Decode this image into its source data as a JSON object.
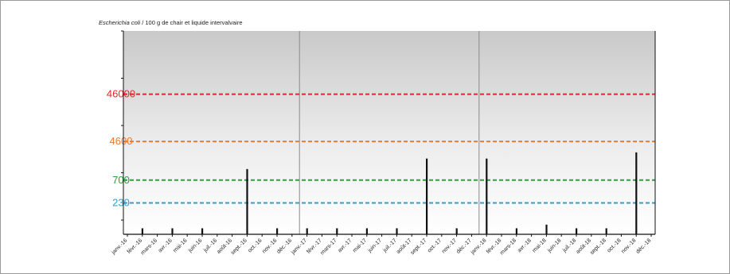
{
  "chart_data": {
    "type": "bar",
    "title_italic": "Escherichia coli",
    "title_rest": " / 100 g de chair et liquide intervalvaire",
    "categories": [
      "janv.-16",
      "févr.-16",
      "mars-16",
      "avr.-16",
      "mai-16",
      "juin-16",
      "juil.-16",
      "août-16",
      "sept.-16",
      "oct.-16",
      "nov.-16",
      "déc.-16",
      "janv.-17",
      "févr.-17",
      "mars-17",
      "avr.-17",
      "mai-17",
      "juin-17",
      "juil.-17",
      "août-17",
      "sept.-17",
      "oct.-17",
      "nov.-17",
      "déc.-17",
      "janv.-18",
      "févr.-18",
      "mars-18",
      "avr.-18",
      "mai-18",
      "juin-18",
      "juil.-18",
      "août-18",
      "sept.-18",
      "oct.-18",
      "nov.-18",
      "déc.-18"
    ],
    "bars": [
      {
        "category": "févr.-16",
        "value": 67
      },
      {
        "category": "avr.-16",
        "value": 67
      },
      {
        "category": "juin-16",
        "value": 67
      },
      {
        "category": "sept.-16",
        "value": 1200
      },
      {
        "category": "nov.-16",
        "value": 67
      },
      {
        "category": "janv.-17",
        "value": 67
      },
      {
        "category": "mars-17",
        "value": 67
      },
      {
        "category": "mai-17",
        "value": 67
      },
      {
        "category": "juil.-17",
        "value": 67
      },
      {
        "category": "sept.-17",
        "value": 2000
      },
      {
        "category": "nov.-17",
        "value": 67
      },
      {
        "category": "janv.-18",
        "value": 2000
      },
      {
        "category": "mars-18",
        "value": 67
      },
      {
        "category": "mai-18",
        "value": 80
      },
      {
        "category": "juil.-18",
        "value": 67
      },
      {
        "category": "sept.-18",
        "value": 67
      },
      {
        "category": "nov.-18",
        "value": 2700
      }
    ],
    "thresholds": [
      {
        "label": "46000",
        "value": 46000,
        "color": "#e3262c"
      },
      {
        "label": "4600",
        "value": 4600,
        "color": "#ef7a2a"
      },
      {
        "label": "700",
        "value": 700,
        "color": "#2ca03c"
      },
      {
        "label": "230",
        "value": 230,
        "color": "#2a9fd6"
      }
    ],
    "year_separators_after": [
      "déc.-16",
      "déc.-17"
    ],
    "yscale": "log",
    "ylim": [
      50,
      1000000
    ],
    "background": "gradient-grey"
  }
}
